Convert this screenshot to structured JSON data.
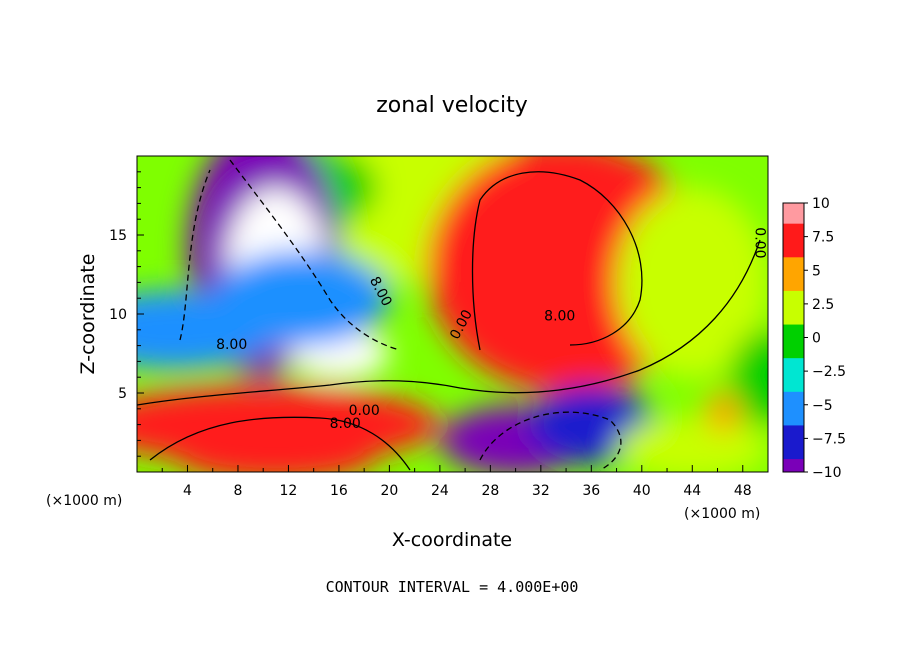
{
  "chart_data": {
    "type": "heatmap",
    "title": "zonal velocity",
    "xlabel": "X-coordinate",
    "ylabel": "Z-coordinate",
    "x_unit": "(×1000 m)",
    "footer": "CONTOUR INTERVAL = 4.000E+00",
    "xlim": [
      0,
      50
    ],
    "ylim": [
      0,
      20
    ],
    "xticks": [
      4,
      8,
      12,
      16,
      20,
      24,
      28,
      32,
      36,
      40,
      44,
      48
    ],
    "yticks": [
      5,
      10,
      15
    ],
    "colorbar": {
      "range": [
        -10,
        10
      ],
      "ticks": [
        10,
        7.5,
        5,
        2.5,
        0,
        -2.5,
        -5,
        -7.5,
        -10
      ],
      "tick_labels": [
        "10",
        "7.5",
        "5",
        "2.5",
        "0",
        "−2.5",
        "−5",
        "−7.5",
        "−10"
      ],
      "colors": [
        "#ff9aa0",
        "#ff1a1a",
        "#ffa500",
        "#c8ff00",
        "#00d000",
        "#00e6d2",
        "#1e90ff",
        "#1a1acd",
        "#7a00b8"
      ]
    },
    "contour_labels": [
      {
        "text": "8.00",
        "x": 19,
        "z": 11.3,
        "rot": 62
      },
      {
        "text": "8.00",
        "x": 7.5,
        "z": 7.8,
        "rot": 0
      },
      {
        "text": "0.00",
        "x": 18,
        "z": 3.6,
        "rot": 0
      },
      {
        "text": "8.00",
        "x": 16.5,
        "z": 2.8,
        "rot": 0
      },
      {
        "text": "0.00",
        "x": 26,
        "z": 9.2,
        "rot": -62
      },
      {
        "text": "8.00",
        "x": 33.5,
        "z": 9.6,
        "rot": 0
      },
      {
        "text": "0.00",
        "x": 49,
        "z": 14.5,
        "rot": 90
      }
    ],
    "blobs": [
      {
        "x": 22,
        "z": 17,
        "rx": 12,
        "rz": 5,
        "v": 3
      },
      {
        "x": 12,
        "z": 18,
        "rx": 7,
        "rz": 3,
        "v": 0
      },
      {
        "x": 10,
        "z": 14,
        "rx": 6,
        "rz": 8,
        "v": -8
      },
      {
        "x": 11,
        "z": 13,
        "rx": 4,
        "rz": 5,
        "v": -16
      },
      {
        "x": 16,
        "z": 7.5,
        "rx": 4,
        "rz": 1.6,
        "v": -12
      },
      {
        "x": 13,
        "z": 11,
        "rx": 7,
        "rz": 3,
        "v": -4
      },
      {
        "x": 34,
        "z": 13,
        "rx": 11,
        "rz": 8,
        "v": 8
      },
      {
        "x": 33,
        "z": 16,
        "rx": 7,
        "rz": 5,
        "v": 8
      },
      {
        "x": 44,
        "z": 12,
        "rx": 6,
        "rz": 6,
        "v": 3
      },
      {
        "x": 10,
        "z": 3,
        "rx": 14,
        "rz": 2.5,
        "v": 9
      },
      {
        "x": 11,
        "z": 1,
        "rx": 8,
        "rz": 1.6,
        "v": 9
      },
      {
        "x": 30,
        "z": 2,
        "rx": 6,
        "rz": 2.2,
        "v": -10
      },
      {
        "x": 36,
        "z": 3,
        "rx": 5,
        "rz": 2.5,
        "v": -7
      },
      {
        "x": 44,
        "z": 1.5,
        "rx": 6,
        "rz": 2,
        "v": 4
      },
      {
        "x": 46.5,
        "z": 3.8,
        "rx": 1.5,
        "rz": 1.3,
        "v": 6
      },
      {
        "x": 3,
        "z": 9,
        "rx": 8,
        "rz": 2.5,
        "v": -4
      },
      {
        "x": 50,
        "z": 6,
        "rx": 3,
        "rz": 3,
        "v": 2
      }
    ]
  }
}
